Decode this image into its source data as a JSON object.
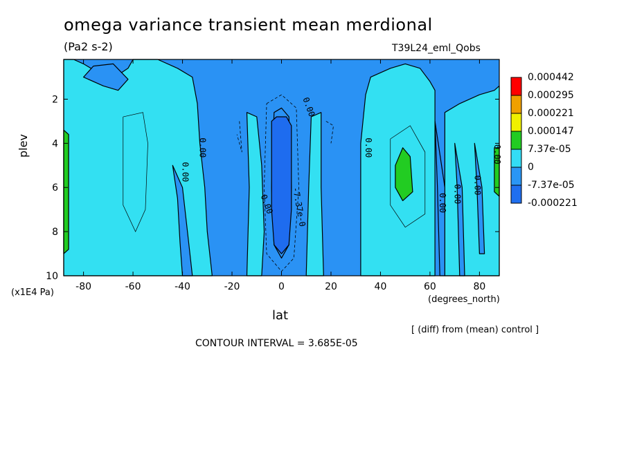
{
  "header": {
    "title": "omega variance transient mean merdional",
    "units": "(Pa2 s-2)",
    "run_name": "T39L24_eml_Qobs"
  },
  "footer": {
    "diff_note": "[ (diff) from (mean) control ]",
    "contour_interval": "CONTOUR INTERVAL = 3.685E-05"
  },
  "colors": {
    "level_colors": [
      "#1f6fef",
      "#2a96f5",
      "#33dcf5",
      "#22cc22",
      "#f0f000",
      "#f0a000",
      "#ff1a1a",
      "#ff0000"
    ],
    "line": "#000000"
  },
  "chart_data": {
    "type": "heatmap",
    "plot_kind": "filled contour",
    "title": "omega variance transient mean merdional",
    "subtitle": "(Pa2 s-2)",
    "xlabel": "lat",
    "x_unit_label": "(degrees_north)",
    "ylabel": "plev",
    "y_unit_label": "(x1E4 Pa)",
    "xlim": [
      -88,
      88
    ],
    "ylim": [
      10,
      0.2
    ],
    "y_inverted": true,
    "x_ticks": [
      -80,
      -60,
      -40,
      -20,
      0,
      20,
      40,
      60,
      80
    ],
    "x_tick_labels": [
      "-80",
      "-60",
      "-40",
      "-20",
      "0",
      "20",
      "40",
      "60",
      "80"
    ],
    "y_ticks": [
      2,
      4,
      6,
      8,
      10
    ],
    "y_tick_labels": [
      "2",
      "4",
      "6",
      "8",
      "10"
    ],
    "contour_interval": 3.685e-05,
    "legend": {
      "position": "right",
      "labels": [
        "0.000442",
        "0.000295",
        "0.000221",
        "0.000147",
        "7.37e-05",
        "0",
        "-7.37e-05",
        "-0.000221"
      ],
      "colors": [
        "#ff0000",
        "#f0a000",
        "#f0f000",
        "#22cc22",
        "#33dcf5",
        "#2a96f5",
        "#1f6fef",
        "#1f6fef"
      ]
    },
    "contour_labels": [
      {
        "text": "0.00",
        "lat": -33,
        "plev": 4.2,
        "angle": 90
      },
      {
        "text": "0.00",
        "lat": -40,
        "plev": 5.3,
        "angle": 90
      },
      {
        "text": "0.00",
        "lat": -7,
        "plev": 6.8,
        "angle": 70
      },
      {
        "text": "-7.37e-0",
        "lat": 6,
        "plev": 6.9,
        "angle": 80
      },
      {
        "text": "0.00",
        "lat": 10,
        "plev": 2.4,
        "angle": 70
      },
      {
        "text": "0.00",
        "lat": 34,
        "plev": 4.2,
        "angle": 90
      },
      {
        "text": "0.00",
        "lat": 64,
        "plev": 6.7,
        "angle": 90
      },
      {
        "text": "0.00",
        "lat": 70,
        "plev": 6.3,
        "angle": 90
      },
      {
        "text": "0.00",
        "lat": 78,
        "plev": 5.9,
        "angle": 90
      },
      {
        "text": "0.00",
        "lat": 86,
        "plev": 4.5,
        "angle": 90
      }
    ],
    "regions": [
      {
        "level": 0,
        "points": [
          [
            -88,
            0.2
          ],
          [
            88,
            0.2
          ],
          [
            88,
            10
          ],
          [
            -88,
            10
          ]
        ]
      },
      {
        "level": 2,
        "points": [
          [
            -88,
            0.2
          ],
          [
            -84,
            0.2
          ],
          [
            -80,
            0.4
          ],
          [
            -74,
            0.8
          ],
          [
            -70,
            1.2
          ],
          [
            -62,
            0.6
          ],
          [
            -60,
            0.2
          ],
          [
            -50,
            0.2
          ],
          [
            -42,
            0.6
          ],
          [
            -36,
            1.0
          ],
          [
            -34,
            2.2
          ],
          [
            -33,
            4.0
          ],
          [
            -31,
            6.0
          ],
          [
            -30,
            8.0
          ],
          [
            -28,
            10
          ],
          [
            -88,
            10
          ]
        ]
      },
      {
        "level": 1,
        "points": [
          [
            -80,
            1.0
          ],
          [
            -72,
            1.4
          ],
          [
            -66,
            1.6
          ],
          [
            -62,
            1.1
          ],
          [
            -68,
            0.4
          ],
          [
            -76,
            0.5
          ]
        ]
      },
      {
        "level": 1,
        "points": [
          [
            -44,
            5.0
          ],
          [
            -42,
            6.5
          ],
          [
            -41,
            8.5
          ],
          [
            -40,
            10
          ],
          [
            -36,
            10
          ],
          [
            -38,
            8.0
          ],
          [
            -40,
            6.0
          ]
        ]
      },
      {
        "level": 2,
        "points": [
          [
            -14,
            2.6
          ],
          [
            -10,
            2.8
          ],
          [
            -8,
            5.0
          ],
          [
            -7,
            8.0
          ],
          [
            -8,
            10
          ],
          [
            -14,
            10
          ],
          [
            -13,
            6.0
          ]
        ]
      },
      {
        "level": 2,
        "points": [
          [
            12,
            2.8
          ],
          [
            16,
            2.6
          ],
          [
            16,
            6.0
          ],
          [
            17,
            10
          ],
          [
            10,
            10
          ],
          [
            11,
            6.0
          ]
        ]
      },
      {
        "level": 1,
        "points": [
          [
            -3,
            2.6
          ],
          [
            0,
            2.4
          ],
          [
            3,
            2.8
          ],
          [
            4,
            6.0
          ],
          [
            3,
            8.6
          ],
          [
            0,
            9.2
          ],
          [
            -3,
            8.6
          ],
          [
            -4,
            6.0
          ]
        ]
      },
      {
        "level": 0,
        "points": [
          [
            -4,
            3.0
          ],
          [
            -2,
            2.8
          ],
          [
            2,
            2.8
          ],
          [
            4,
            3.2
          ],
          [
            4,
            7.0
          ],
          [
            3,
            8.6
          ],
          [
            0,
            9.0
          ],
          [
            -3,
            8.6
          ],
          [
            -4,
            7.0
          ]
        ]
      },
      {
        "level": 2,
        "points": [
          [
            32,
            10
          ],
          [
            32,
            4.0
          ],
          [
            34,
            1.8
          ],
          [
            36,
            1.0
          ],
          [
            44,
            0.6
          ],
          [
            50,
            0.4
          ],
          [
            56,
            0.6
          ],
          [
            60,
            1.2
          ],
          [
            62,
            1.6
          ],
          [
            62,
            3.0
          ],
          [
            62,
            10
          ]
        ]
      },
      {
        "level": 2,
        "points": [
          [
            66,
            2.6
          ],
          [
            72,
            2.2
          ],
          [
            80,
            1.8
          ],
          [
            86,
            1.6
          ],
          [
            88,
            1.4
          ],
          [
            88,
            10
          ],
          [
            66,
            10
          ]
        ]
      },
      {
        "level": 1,
        "points": [
          [
            62,
            3.0
          ],
          [
            63,
            6.0
          ],
          [
            64,
            10
          ],
          [
            66,
            10
          ],
          [
            66,
            6.0
          ]
        ]
      },
      {
        "level": 1,
        "points": [
          [
            70,
            4.0
          ],
          [
            71,
            6.0
          ],
          [
            72,
            10
          ],
          [
            74,
            10
          ],
          [
            73,
            6.0
          ]
        ]
      },
      {
        "level": 1,
        "points": [
          [
            78,
            4.0
          ],
          [
            79,
            6.0
          ],
          [
            80,
            9.0
          ],
          [
            82,
            9.0
          ],
          [
            81,
            6.0
          ]
        ]
      },
      {
        "level": 3,
        "points": [
          [
            46,
            5.0
          ],
          [
            49,
            4.2
          ],
          [
            52,
            4.6
          ],
          [
            53,
            6.2
          ],
          [
            49,
            6.6
          ],
          [
            46,
            6.0
          ]
        ]
      },
      {
        "level": 3,
        "points": [
          [
            -88,
            3.4
          ],
          [
            -86,
            3.6
          ],
          [
            -86,
            8.8
          ],
          [
            -88,
            9.0
          ]
        ]
      },
      {
        "level": 3,
        "points": [
          [
            86,
            4.2
          ],
          [
            88,
            4.2
          ],
          [
            88,
            6.4
          ],
          [
            86,
            6.2
          ]
        ]
      }
    ]
  }
}
